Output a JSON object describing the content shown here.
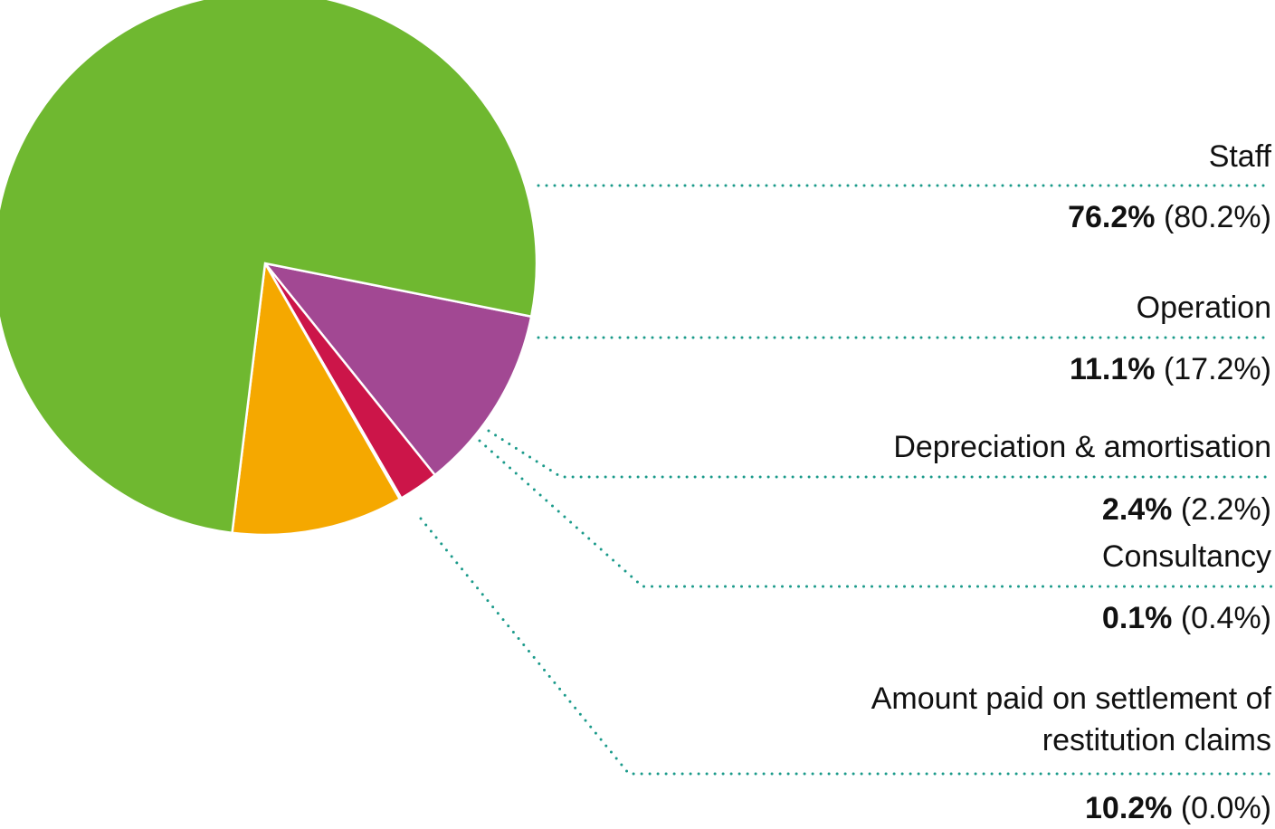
{
  "chart_data": {
    "type": "pie",
    "categories": [
      "Staff",
      "Operation",
      "Depreciation & amortisation",
      "Consultancy",
      "Amount paid on settlement of restitution claims"
    ],
    "values": [
      76.2,
      11.1,
      2.4,
      0.1,
      10.2
    ],
    "value_labels": [
      "76.2%",
      "11.1%",
      "2.4%",
      "0.1%",
      "10.2%"
    ],
    "previous_labels": [
      "(80.2%)",
      "(17.2%)",
      "(2.2%)",
      "(0.4%)",
      "(0.0%)"
    ],
    "colors": [
      "#6fb830",
      "#a24893",
      "#cc1549",
      "#1f8ccc",
      "#f5a800"
    ]
  }
}
